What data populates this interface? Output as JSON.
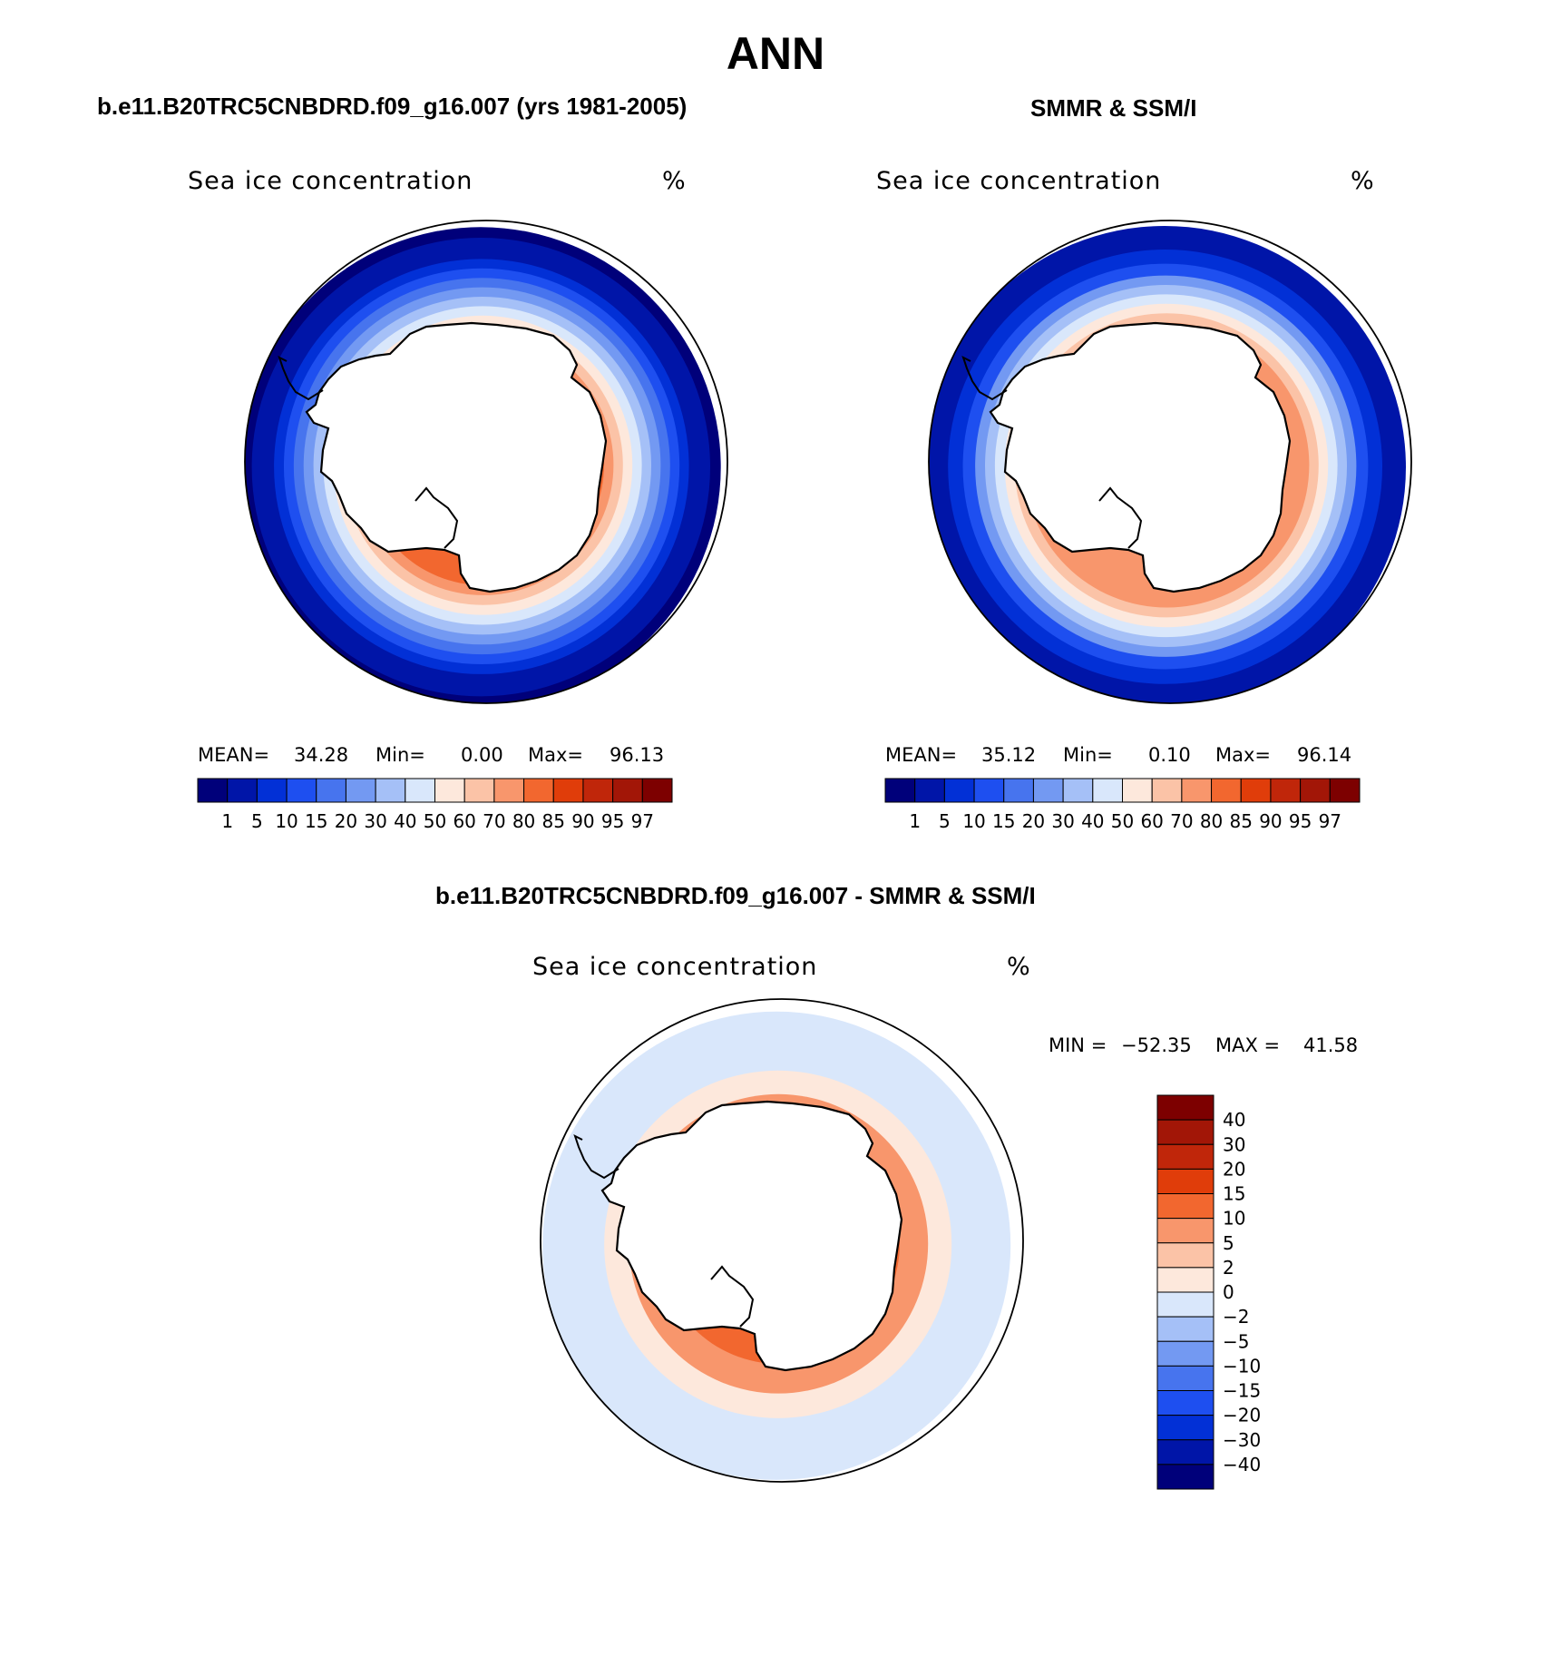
{
  "title": "ANN",
  "top_left": {
    "case_title": "b.e11.B20TRC5CNBDRD.f09_g16.007 (yrs 1981-2005)",
    "variable": "Sea ice concentration",
    "units": "%",
    "mean_label": "MEAN=",
    "mean": "34.28",
    "min_label": "Min=",
    "min": "0.00",
    "max_label": "Max=",
    "max": "96.13"
  },
  "top_right": {
    "case_title": "SMMR & SSM/I",
    "variable": "Sea ice concentration",
    "units": "%",
    "mean_label": "MEAN=",
    "mean": "35.12",
    "min_label": "Min=",
    "min": "0.10",
    "max_label": "Max=",
    "max": "96.14"
  },
  "bottom": {
    "case_title": "b.e11.B20TRC5CNBDRD.f09_g16.007 - SMMR & SSM/I",
    "variable": "Sea ice concentration",
    "units": "%",
    "min_label": "MIN =",
    "min": "−52.35",
    "max_label": "MAX =",
    "max": "41.58"
  },
  "chart_data": [
    {
      "type": "heatmap",
      "projection": "south-polar-stereographic",
      "title": "b.e11.B20TRC5CNBDRD.f09_g16.007 (yrs 1981-2005)",
      "variable": "Sea ice concentration",
      "units": "%",
      "stats": {
        "mean": 34.28,
        "min": 0.0,
        "max": 96.13
      },
      "colorbar": {
        "orientation": "horizontal",
        "levels": [
          1,
          5,
          10,
          15,
          20,
          30,
          40,
          50,
          60,
          70,
          80,
          85,
          90,
          95,
          97
        ],
        "colors": [
          "#00007a",
          "#0015a8",
          "#0230d6",
          "#1e4ff0",
          "#4774ee",
          "#7399f2",
          "#a5c0f7",
          "#d9e7fb",
          "#fde8dc",
          "#fbc3a7",
          "#f8966c",
          "#f2672f",
          "#e03d0a",
          "#c0260a",
          "#a21607",
          "#7d0000"
        ]
      },
      "ring_fields": [
        {
          "fraction": 0.995,
          "value": 0
        },
        {
          "fraction": 0.95,
          "value": 1
        },
        {
          "fraction": 0.86,
          "value": 5
        },
        {
          "fraction": 0.82,
          "value": 10
        },
        {
          "fraction": 0.78,
          "value": 15
        },
        {
          "fraction": 0.74,
          "value": 20
        },
        {
          "fraction": 0.7,
          "value": 30
        },
        {
          "fraction": 0.66,
          "value": 40
        },
        {
          "fraction": 0.62,
          "value": 50
        },
        {
          "fraction": 0.58,
          "value": 60
        },
        {
          "fraction": 0.54,
          "value": 70
        },
        {
          "fraction": 0.5,
          "value": 80
        }
      ]
    },
    {
      "type": "heatmap",
      "projection": "south-polar-stereographic",
      "title": "SMMR & SSM/I",
      "variable": "Sea ice concentration",
      "units": "%",
      "stats": {
        "mean": 35.12,
        "min": 0.1,
        "max": 96.14
      },
      "colorbar": {
        "orientation": "horizontal",
        "levels": [
          1,
          5,
          10,
          15,
          20,
          30,
          40,
          50,
          60,
          70,
          80,
          85,
          90,
          95,
          97
        ],
        "colors": [
          "#00007a",
          "#0015a8",
          "#0230d6",
          "#1e4ff0",
          "#4774ee",
          "#7399f2",
          "#a5c0f7",
          "#d9e7fb",
          "#fde8dc",
          "#fbc3a7",
          "#f8966c",
          "#f2672f",
          "#e03d0a",
          "#c0260a",
          "#a21607",
          "#7d0000"
        ]
      },
      "ring_fields": [
        {
          "fraction": 1.0,
          "value": 1
        },
        {
          "fraction": 0.9,
          "value": 5
        },
        {
          "fraction": 0.84,
          "value": 10
        },
        {
          "fraction": 0.79,
          "value": 20
        },
        {
          "fraction": 0.75,
          "value": 30
        },
        {
          "fraction": 0.71,
          "value": 40
        },
        {
          "fraction": 0.67,
          "value": 50
        },
        {
          "fraction": 0.63,
          "value": 60
        },
        {
          "fraction": 0.59,
          "value": 70
        }
      ]
    },
    {
      "type": "heatmap",
      "projection": "south-polar-stereographic",
      "title": "b.e11.B20TRC5CNBDRD.f09_g16.007 - SMMR & SSM/I",
      "variable": "Sea ice concentration",
      "units": "%",
      "stats": {
        "min": -52.35,
        "max": 41.58
      },
      "colorbar": {
        "orientation": "vertical",
        "levels": [
          40,
          30,
          20,
          15,
          10,
          5,
          2,
          0,
          -2,
          -5,
          -10,
          -15,
          -20,
          -30,
          -40
        ],
        "tick_labels": [
          "40",
          "30",
          "20",
          "15",
          "10",
          "5",
          "2",
          "0",
          "−2",
          "−5",
          "−10",
          "−15",
          "−20",
          "−30",
          "−40"
        ],
        "colors": [
          "#7d0000",
          "#a21607",
          "#c0260a",
          "#e03d0a",
          "#f2672f",
          "#f8966c",
          "#fbc3a7",
          "#fde8dc",
          "#d9e7fb",
          "#a5c0f7",
          "#7399f2",
          "#4774ee",
          "#1e4ff0",
          "#0230d6",
          "#0015a8",
          "#00007a"
        ]
      },
      "ring_fields": [
        {
          "fraction": 0.97,
          "value": -1
        },
        {
          "fraction": 0.72,
          "value": 1
        },
        {
          "fraction": 0.62,
          "value": 8
        },
        {
          "fraction": 0.5,
          "value": 12
        }
      ]
    }
  ]
}
